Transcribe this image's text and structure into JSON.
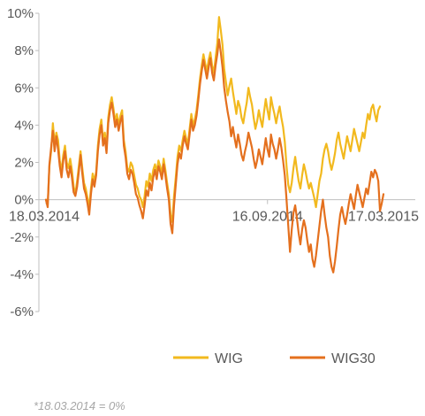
{
  "chart_data": {
    "type": "line",
    "ylim": [
      -6,
      10
    ],
    "yticks": [
      -6,
      -4,
      -2,
      0,
      2,
      4,
      6,
      8,
      10
    ],
    "ytick_labels": [
      "-6%",
      "-4%",
      "-2%",
      "0%",
      "2%",
      "4%",
      "6%",
      "8%",
      "10%"
    ],
    "x_labels": [
      "18.03.2014",
      "16.09.2014",
      "17.03.2015"
    ],
    "x_label_index": [
      0,
      128,
      254
    ],
    "grid": false,
    "legend_position": "bottom",
    "series": [
      {
        "name": "WIG",
        "color": "#F2B91E",
        "values": [
          0,
          -0.3,
          1.8,
          2.6,
          4.1,
          3.0,
          3.6,
          3.2,
          2.1,
          1.5,
          2.4,
          2.9,
          2.0,
          1.7,
          2.2,
          1.6,
          0.7,
          0.3,
          1.0,
          1.8,
          2.6,
          1.7,
          0.9,
          0.6,
          0.1,
          -0.4,
          0.6,
          1.4,
          1.0,
          1.5,
          2.9,
          3.8,
          4.3,
          3.2,
          3.6,
          2.8,
          4.4,
          5.1,
          5.5,
          4.9,
          4.2,
          4.6,
          4.0,
          4.5,
          4.8,
          3.2,
          2.6,
          1.7,
          1.5,
          2.0,
          1.8,
          1.3,
          0.8,
          0.6,
          0.2,
          0.0,
          -0.4,
          0.2,
          1.0,
          0.7,
          1.4,
          1.0,
          1.6,
          1.9,
          1.5,
          2.1,
          1.8,
          1.4,
          2.2,
          1.6,
          0.9,
          0.3,
          -0.8,
          -1.2,
          0.2,
          1.2,
          2.3,
          2.9,
          2.6,
          3.2,
          3.7,
          3.3,
          3.0,
          3.8,
          4.6,
          4.0,
          4.3,
          4.8,
          5.6,
          6.5,
          7.2,
          7.8,
          7.3,
          6.9,
          7.5,
          7.9,
          7.2,
          6.8,
          7.6,
          8.4,
          9.8,
          9.1,
          8.3,
          7.0,
          6.3,
          5.6,
          6.1,
          6.5,
          5.8,
          5.2,
          4.6,
          5.3,
          5.0,
          4.4,
          4.1,
          4.7,
          5.2,
          6.0,
          5.5,
          5.1,
          4.4,
          3.8,
          4.2,
          4.8,
          4.3,
          3.9,
          4.7,
          5.4,
          4.8,
          4.3,
          5.5,
          5.0,
          4.6,
          4.1,
          4.6,
          5.0,
          4.4,
          3.9,
          3.1,
          1.8,
          0.8,
          0.4,
          0.9,
          1.7,
          2.3,
          1.6,
          1.0,
          0.6,
          1.3,
          1.9,
          1.5,
          1.0,
          0.6,
          0.9,
          0.5,
          0.1,
          -0.4,
          0.3,
          1.0,
          1.4,
          2.2,
          2.7,
          3.0,
          2.6,
          2.0,
          1.6,
          2.0,
          2.5,
          3.2,
          3.6,
          3.0,
          2.6,
          2.2,
          2.8,
          3.4,
          3.0,
          2.6,
          3.2,
          3.8,
          3.4,
          3.0,
          2.6,
          3.1,
          3.6,
          3.3,
          4.0,
          4.6,
          4.3,
          4.9,
          5.1,
          4.6,
          4.2,
          4.8,
          5.0
        ]
      },
      {
        "name": "WIG30",
        "color": "#E4701E",
        "values": [
          0,
          -0.4,
          1.9,
          2.8,
          3.7,
          2.6,
          3.4,
          2.7,
          1.8,
          1.2,
          2.1,
          2.6,
          1.6,
          1.2,
          1.8,
          1.2,
          0.4,
          0.2,
          0.7,
          1.5,
          2.4,
          1.4,
          0.6,
          0.3,
          -0.2,
          -0.8,
          0.3,
          1.1,
          0.7,
          1.3,
          2.6,
          3.5,
          4.0,
          2.9,
          3.3,
          2.5,
          4.1,
          4.8,
          5.2,
          4.6,
          3.9,
          4.3,
          3.7,
          4.2,
          4.5,
          2.9,
          2.3,
          1.4,
          1.1,
          1.6,
          1.4,
          0.9,
          0.3,
          0.1,
          -0.3,
          -0.6,
          -1.0,
          -0.3,
          0.5,
          0.2,
          0.9,
          0.5,
          1.2,
          1.6,
          1.1,
          1.8,
          1.5,
          1.1,
          1.9,
          1.3,
          0.6,
          0.0,
          -1.3,
          -1.8,
          -0.3,
          0.8,
          1.9,
          2.5,
          2.2,
          2.9,
          3.4,
          3.0,
          2.7,
          3.5,
          4.3,
          3.7,
          4.0,
          4.5,
          5.3,
          6.2,
          6.9,
          7.5,
          7.0,
          6.5,
          7.1,
          7.6,
          6.8,
          6.4,
          7.2,
          7.8,
          8.6,
          7.9,
          7.1,
          6.0,
          5.3,
          4.7,
          4.2,
          3.4,
          3.9,
          3.3,
          2.8,
          3.5,
          3.0,
          2.4,
          2.1,
          2.6,
          3.0,
          3.6,
          3.2,
          2.8,
          2.2,
          1.7,
          2.1,
          2.7,
          2.3,
          1.9,
          2.6,
          3.3,
          2.7,
          2.3,
          3.5,
          3.0,
          2.7,
          2.2,
          2.7,
          3.3,
          2.8,
          2.1,
          1.3,
          0.0,
          -1.4,
          -2.8,
          -1.6,
          -0.7,
          -0.3,
          -1.0,
          -1.8,
          -2.4,
          -1.6,
          -1.1,
          -1.5,
          -2.2,
          -2.8,
          -2.4,
          -3.2,
          -3.6,
          -3.0,
          -2.2,
          -1.4,
          -0.6,
          0.0,
          -0.8,
          -1.5,
          -2.0,
          -3.0,
          -3.6,
          -3.9,
          -3.3,
          -2.5,
          -1.6,
          -0.8,
          -0.4,
          -0.9,
          -1.3,
          -0.8,
          -0.2,
          0.3,
          -0.1,
          -0.5,
          0.2,
          0.8,
          0.4,
          0.0,
          -0.4,
          0.1,
          0.6,
          0.3,
          0.9,
          1.5,
          1.2,
          1.6,
          1.4,
          1.0,
          -0.6,
          -0.2,
          0.3
        ]
      }
    ]
  },
  "legend": {
    "items": [
      {
        "label": "WIG",
        "color": "#F2B91E"
      },
      {
        "label": "WIG30",
        "color": "#E4701E"
      }
    ]
  },
  "footnote": "*18.03.2014 = 0%"
}
